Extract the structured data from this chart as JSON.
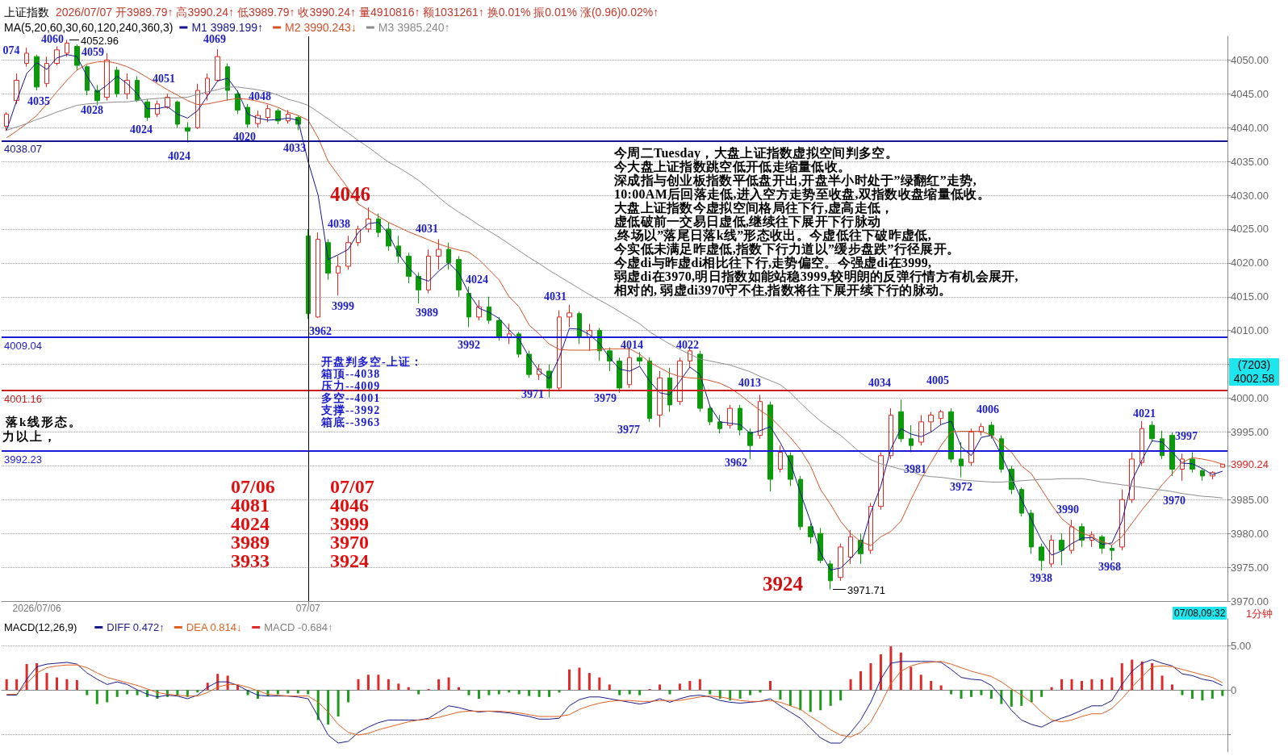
{
  "chart_data": [
    {
      "type": "candlestick",
      "title": "上证指数",
      "subtitle": "2026/07/07 开3989.79↑ 高3990.24↑ 低3989.79↑ 收3990.24↑ 量4910816↑ 额1031261↑ 换0.01% 振0.01% 涨(0.96)0.02%↑",
      "legend_title": "MA(5,20,60,30,60,120,240,360,3)",
      "legend": "top left",
      "grid": "y",
      "ylim": [
        3970,
        4053.5
      ],
      "yticks": [
        {
          "value": 3970,
          "label": "3970.00"
        },
        {
          "value": 3975,
          "label": "3975.00"
        },
        {
          "value": 3980,
          "label": "3980.00"
        },
        {
          "value": 3985,
          "label": "3985.00"
        },
        {
          "value": 3990,
          "label": null
        },
        {
          "value": 3995,
          "label": "3995.00"
        },
        {
          "value": 4000,
          "label": "4000.00"
        },
        {
          "value": 4005,
          "label": null
        },
        {
          "value": 4010,
          "label": "4010.00"
        },
        {
          "value": 4015,
          "label": "4015.00"
        },
        {
          "value": 4020,
          "label": "4020.00"
        },
        {
          "value": 4025,
          "label": "4025.00"
        },
        {
          "value": 4030,
          "label": "4030.00"
        },
        {
          "value": 4035,
          "label": "4035.00"
        },
        {
          "value": 4040,
          "label": "4040.00"
        },
        {
          "value": 4045,
          "label": "4045.00"
        },
        {
          "value": 4050,
          "label": "4050.00"
        }
      ],
      "categories": [
        null,
        null,
        null,
        "2026/07/06",
        null,
        null,
        null,
        null,
        null,
        null,
        null,
        null,
        null,
        null,
        null,
        null,
        null,
        null,
        null,
        null,
        null,
        null,
        null,
        null,
        null,
        null,
        null,
        null,
        null,
        null,
        "07/07",
        null,
        null,
        null,
        null,
        null,
        null,
        null,
        null,
        null,
        null,
        null,
        null,
        null,
        null,
        null,
        null,
        null,
        null,
        null,
        null,
        null,
        null,
        null,
        null,
        null,
        null,
        null,
        null,
        null,
        null,
        null,
        null,
        null,
        null,
        null,
        null,
        null,
        null,
        null,
        null,
        null,
        null,
        null,
        null,
        null,
        null,
        null,
        null,
        null,
        null,
        null,
        null,
        null,
        null,
        null,
        null,
        null,
        null,
        null,
        null,
        null,
        null,
        null,
        null,
        null,
        null,
        null,
        null,
        null,
        null,
        null,
        null,
        null,
        null,
        null,
        null,
        null,
        null,
        null,
        null,
        null,
        null,
        null,
        null,
        null,
        null,
        null,
        null,
        null,
        null,
        null
      ],
      "ohlc": [
        [
          4040.2,
          4042.3,
          4039.5,
          4042
        ],
        [
          4044,
          4048,
          4043.5,
          4047
        ],
        [
          4049.5,
          4051.8,
          4049,
          4051
        ],
        [
          4050.5,
          4050.8,
          4045.5,
          4046
        ],
        [
          4046.5,
          4050.5,
          4046,
          4049.5
        ],
        [
          4049.5,
          4052,
          4049.2,
          4051.5
        ],
        [
          4051,
          4052.96,
          4050.5,
          4052.5
        ],
        [
          4052,
          4052.3,
          4048.5,
          4049.2
        ],
        [
          4049,
          4049.2,
          4044.8,
          4045.5
        ],
        [
          4045.5,
          4046.3,
          4043.3,
          4044
        ],
        [
          4044.5,
          4051,
          4044,
          4050
        ],
        [
          4048.5,
          4049,
          4044.5,
          4045
        ],
        [
          4045,
          4048,
          4044.2,
          4047
        ],
        [
          4047,
          4047.6,
          4043.8,
          4044
        ],
        [
          4043.8,
          4044.2,
          4041,
          4041.5
        ],
        [
          4042,
          4044,
          4041.6,
          4043.5
        ],
        [
          4043,
          4045,
          4042.8,
          4044.5
        ],
        [
          4043.8,
          4044,
          4040,
          4040.5
        ],
        [
          4040,
          4040.8,
          4037.8,
          4039.5
        ],
        [
          4040,
          4046.5,
          4039.8,
          4045.5
        ],
        [
          4045,
          4048,
          4044,
          4047.3
        ],
        [
          4047,
          4051.6,
          4046.8,
          4050.5
        ],
        [
          4049,
          4049.5,
          4044,
          4045.5
        ],
        [
          4045,
          4045.5,
          4042,
          4042.6
        ],
        [
          4043,
          4043.5,
          4040,
          4040.5
        ],
        [
          4040.6,
          4042.5,
          4040,
          4041.8
        ],
        [
          4041.5,
          4043.4,
          4040.8,
          4042.8
        ],
        [
          4042.5,
          4042.8,
          4040.5,
          4041
        ],
        [
          4041,
          4042.6,
          4040.6,
          4042
        ],
        [
          4041.5,
          4041.8,
          4039.6,
          4040.5
        ],
        [
          4024,
          4025,
          4011.7,
          4012.5
        ],
        [
          4012,
          4024.5,
          4011.9,
          4023.5
        ],
        [
          4023,
          4023.5,
          4017.5,
          4018.5
        ],
        [
          4018.5,
          4021,
          4015.2,
          4019.5
        ],
        [
          4019.5,
          4024,
          4019,
          4023
        ],
        [
          4023,
          4025.5,
          4022.5,
          4025
        ],
        [
          4025,
          4028.2,
          4024.5,
          4026.5
        ],
        [
          4026.5,
          4027.3,
          4023.8,
          4024.5
        ],
        [
          4025,
          4026,
          4021.8,
          4022.5
        ],
        [
          4022.5,
          4024,
          4020,
          4021
        ],
        [
          4021,
          4021.5,
          4017,
          4018
        ],
        [
          4018,
          4018.6,
          4014,
          4016
        ],
        [
          4016,
          4022,
          4015.5,
          4021
        ],
        [
          4021,
          4023.5,
          4019,
          4022
        ],
        [
          4022,
          4023,
          4019,
          4020
        ],
        [
          4020.5,
          4021,
          4015,
          4016
        ],
        [
          4015.5,
          4016.5,
          4010.5,
          4012
        ],
        [
          4012,
          4014.5,
          4011.5,
          4013.5
        ],
        [
          4013.5,
          4015,
          4011,
          4011.5
        ],
        [
          4011.5,
          4012,
          4008.5,
          4009
        ],
        [
          4009,
          4011,
          4008,
          4009.5
        ],
        [
          4009.5,
          4009.8,
          4006,
          4006.5
        ],
        [
          4006.5,
          4007,
          4003,
          4003.5
        ],
        [
          4003.5,
          4005,
          4002.7,
          4004.3
        ],
        [
          4004,
          4005,
          4000.1,
          4001.5
        ],
        [
          4001.5,
          4013,
          4001,
          4012
        ],
        [
          4012,
          4013.8,
          4010.5,
          4012.6
        ],
        [
          4012.5,
          4012.8,
          4008,
          4009
        ],
        [
          4009,
          4011,
          4007,
          4010
        ],
        [
          4010,
          4010.4,
          4005.5,
          4007
        ],
        [
          4007,
          4007.5,
          4004,
          4005.5
        ],
        [
          4005.5,
          4006,
          4000.8,
          4001.5
        ],
        [
          4002,
          4007.5,
          4001.5,
          4006
        ],
        [
          4006,
          4006.8,
          4004.8,
          4005.5
        ],
        [
          4005.5,
          4006,
          3996.5,
          3997
        ],
        [
          3997.5,
          4004,
          3995.7,
          4003
        ],
        [
          4003,
          4004.5,
          3998,
          3999
        ],
        [
          3999.5,
          4006,
          3999,
          4005.5
        ],
        [
          4005.5,
          4007.6,
          4004.5,
          4007
        ],
        [
          4006.5,
          4007,
          3998,
          3998.5
        ],
        [
          3998.5,
          3999,
          3996,
          3996.5
        ],
        [
          3996.5,
          3997.5,
          3994.8,
          3995.5
        ],
        [
          3996,
          3999,
          3995.5,
          3998.5
        ],
        [
          3998.5,
          3999,
          3994.5,
          3995.3
        ],
        [
          3995,
          3995.5,
          3991,
          3993
        ],
        [
          3994.5,
          4000.5,
          3994,
          3999.5
        ],
        [
          3999,
          3999.5,
          3986.2,
          3988
        ],
        [
          3989.5,
          3993,
          3989,
          3992
        ],
        [
          3991.5,
          3992,
          3987,
          3988
        ],
        [
          3988,
          3988.5,
          3980.5,
          3981
        ],
        [
          3981,
          3981.5,
          3978.5,
          3979.5
        ],
        [
          3980,
          3980.8,
          3975.6,
          3976
        ],
        [
          3975.5,
          3976,
          3971.71,
          3973
        ],
        [
          3973.5,
          3978.5,
          3973,
          3978
        ],
        [
          3976.5,
          3980.5,
          3975.5,
          3979.5
        ],
        [
          3979,
          3980,
          3975.5,
          3977
        ],
        [
          3977.5,
          3984.5,
          3977,
          3984
        ],
        [
          3984,
          3992,
          3983.5,
          3991.5
        ],
        [
          3991.5,
          3998.5,
          3991,
          3997.5
        ],
        [
          3998,
          3999.8,
          3993.5,
          3994
        ],
        [
          3994,
          3996,
          3992,
          3993
        ],
        [
          3993.5,
          3997.5,
          3993,
          3996.5
        ],
        [
          3996.5,
          3998,
          3995,
          3997.5
        ],
        [
          3997,
          3998.3,
          3996,
          3998
        ],
        [
          3998,
          3998.5,
          3990.5,
          3991
        ],
        [
          3991,
          3993.5,
          3988.3,
          3990
        ],
        [
          3990.5,
          3995.5,
          3990,
          3995
        ],
        [
          3995,
          3996.3,
          3994.5,
          3995.8
        ],
        [
          3996,
          3996.5,
          3994,
          3994.5
        ],
        [
          3994,
          3994.5,
          3989,
          3989.5
        ],
        [
          3989.5,
          3990,
          3985.8,
          3986.5
        ],
        [
          3986.5,
          3986.8,
          3982.5,
          3983
        ],
        [
          3983,
          3983.5,
          3977,
          3978
        ],
        [
          3978,
          3978.5,
          3974.5,
          3976
        ],
        [
          3975.5,
          3979.8,
          3975,
          3979
        ],
        [
          3979,
          3980,
          3975.3,
          3977.5
        ],
        [
          3977.5,
          3982,
          3977,
          3981
        ],
        [
          3981,
          3981.5,
          3978,
          3979
        ],
        [
          3979,
          3980.3,
          3978,
          3979.8
        ],
        [
          3979.5,
          3979.8,
          3977,
          3977.8
        ],
        [
          3977.8,
          3978.3,
          3976,
          3977.5
        ],
        [
          3978,
          3986.5,
          3977.5,
          3985
        ],
        [
          3985,
          3992,
          3984.5,
          3991
        ],
        [
          3990.5,
          3996.6,
          3990,
          3995.5
        ],
        [
          3996,
          3996.6,
          3993.5,
          3994
        ],
        [
          3994,
          3995.2,
          3991,
          3991.5
        ],
        [
          3994.5,
          3995,
          3988.5,
          3989.5
        ],
        [
          3989.5,
          3991.8,
          3987.8,
          3991
        ],
        [
          3991,
          3992,
          3989,
          3989.5
        ],
        [
          3989.3,
          3989.5,
          3987.8,
          3988.5
        ],
        [
          3988.5,
          3989.2,
          3988,
          3989
        ],
        [
          3989.79,
          3990.24,
          3989.79,
          3990.24
        ]
      ],
      "series": [
        {
          "name": "M1 3989.199↑",
          "type": "line",
          "color": "#14148c",
          "values": [
            4039.6,
            4044,
            4048,
            4049.6,
            4048.6,
            4050.3,
            4050.8,
            4050.5,
            4047.6,
            4045.2,
            4046.3,
            4047.6,
            4046.5,
            4045,
            4042.8,
            4042.8,
            4043.1,
            4042,
            4041.4,
            4042.5,
            4044.7,
            4046.9,
            4047.3,
            4045.3,
            4042,
            4041.4,
            4041.1,
            4041.2,
            4041.4,
            4041.1,
            4035,
            4030,
            4020.5,
            4021.2,
            4022,
            4024.5,
            4025.8,
            4026,
            4024.3,
            4021.3,
            4019.3,
            4017.8,
            4017.3,
            4018.8,
            4020,
            4018.5,
            4015.5,
            4013.3,
            4012.7,
            4011.8,
            4010.1,
            4008.7,
            4006.1,
            4004,
            4002.9,
            4006,
            4010.3,
            4010.2,
            4009.4,
            4008.1,
            4006,
            4004.3,
            4004,
            4004.7,
            4002.5,
            4000.8,
            4000.5,
            4002.5,
            4004.6,
            4003.5,
            3998.8,
            3996.5,
            3996.3,
            3996.1,
            3994.8,
            3995.2,
            3995.8,
            3993.4,
            3990.5,
            3986,
            3981.8,
            3977.1,
            3974.6,
            3974.9,
            3976.3,
            3978,
            3983.1,
            3987,
            3992.5,
            3995.5,
            3994.7,
            3994.3,
            3995,
            3996.1,
            3996.6,
            3992.8,
            3991.5,
            3994.2,
            3994.5,
            3991.6,
            3988.3,
            3985,
            3982,
            3979,
            3976.8,
            3977.4,
            3978.5,
            3979.3,
            3979.4,
            3978.4,
            3978.6,
            3981.8,
            3987.8,
            3990.9,
            3993.7,
            3993.5,
            3992,
            3990.4,
            3990.3,
            3989.6,
            3988.7,
            3989.199
          ]
        },
        {
          "name": "M2 3990.243↓",
          "type": "line",
          "color": "#d2522a",
          "values": [
            4038.5,
            4039.5,
            4040.6,
            4041.8,
            4043.5,
            4045.3,
            4047,
            4048.5,
            4049.4,
            4049.7,
            4049.8,
            4049.5,
            4049,
            4048.3,
            4047.4,
            4046.5,
            4045.6,
            4044.8,
            4044,
            4043.4,
            4043.5,
            4043.8,
            4044.1,
            4044.3,
            4044.2,
            4043.9,
            4043.5,
            4043,
            4042.3,
            4041.8,
            4041.1,
            4038.5,
            4035,
            4033,
            4031,
            4028.7,
            4027.8,
            4026.9,
            4026,
            4025.3,
            4024.6,
            4024,
            4023.4,
            4022.8,
            4022.3,
            4021.9,
            4021.6,
            4020.5,
            4019,
            4017.5,
            4015,
            4013.5,
            4010.8,
            4009.5,
            4008,
            4007.2,
            4007.1,
            4007.1,
            4007.1,
            4007.2,
            4007.3,
            4007.3,
            4007.3,
            4006.5,
            4005.3,
            4004.5,
            4003.7,
            4003.2,
            4003,
            4002.9,
            4002.6,
            4002.2,
            4001.5,
            4000.5,
            3999.3,
            3998.2,
            3997.2,
            3995.7,
            3994.2,
            3992.4,
            3990,
            3986.5,
            3984.3,
            3981.8,
            3980,
            3978.8,
            3978.2,
            3979.5,
            3980.3,
            3981.8,
            3985,
            3988,
            3990.5,
            3993,
            3995,
            3995.1,
            3995.1,
            3995.1,
            3994.5,
            3993.3,
            3992,
            3990,
            3988.8,
            3986.5,
            3984.2,
            3982.2,
            3981,
            3980.1,
            3979.5,
            3978.8,
            3978.3,
            3979.5,
            3981.5,
            3983.5,
            3985.3,
            3987.2,
            3988.8,
            3990.5,
            3991.2,
            3991,
            3990.7,
            3990.243
          ]
        },
        {
          "name": "M3 3985.240↑",
          "type": "line",
          "color": "#8c8c8c",
          "values": [
            4039.6,
            4040.1,
            4040.6,
            4041.2,
            4041.7,
            4042.3,
            4042.8,
            4043.3,
            4043.5,
            4043.6,
            4043.7,
            4043.8,
            4043.8,
            4044,
            4044.2,
            4044.3,
            4044.4,
            4044.4,
            4044.5,
            4044.9,
            4045.3,
            4045.6,
            4046,
            4046,
            4045.8,
            4045.6,
            4045.3,
            4044.8,
            4044.2,
            4043.8,
            4043.3,
            4042.3,
            4041.3,
            4040.2,
            4039.2,
            4038.1,
            4037.1,
            4036,
            4034.9,
            4034.1,
            4033.2,
            4032.2,
            4031,
            4029.7,
            4028.5,
            4027.5,
            4026.6,
            4025.6,
            4024.7,
            4023.8,
            4022.8,
            4021.8,
            4020.8,
            4019.9,
            4018.9,
            4018,
            4017.1,
            4016.2,
            4015.3,
            4014.5,
            4013.7,
            4012.8,
            4011.9,
            4011,
            4009.8,
            4008.9,
            4008,
            4007.2,
            4006.5,
            4005.8,
            4005.5,
            4005.2,
            4004.9,
            4004.4,
            4003.9,
            4003.2,
            4002.6,
            4002,
            4000.8,
            3999.3,
            3997.9,
            3996.6,
            3995.5,
            3994.5,
            3993.2,
            3991.9,
            3990.9,
            3990.3,
            3989.9,
            3989.5,
            3989.2,
            3988.6,
            3988.4,
            3988.3,
            3988.1,
            3987.9,
            3987.8,
            3987.7,
            3987.6,
            3987.6,
            3987.7,
            3987.8,
            3987.9,
            3988,
            3988,
            3988.1,
            3988.1,
            3988.1,
            3987.9,
            3987.6,
            3987.4,
            3987.2,
            3987,
            3986.8,
            3986.6,
            3986.4,
            3986.2,
            3985.9,
            3985.7,
            3985.5,
            3985.4,
            3985.24
          ]
        }
      ],
      "ref_lines": [
        {
          "axis": "y",
          "value": 4038.07,
          "label": "4038.07",
          "color": "#14148c"
        },
        {
          "axis": "y",
          "value": 4009.04,
          "label": "4009.04",
          "color": "#1a1ad6"
        },
        {
          "axis": "y",
          "value": 4001.16,
          "label": "4001.16",
          "color": "#cc1f1f"
        },
        {
          "axis": "y",
          "value": 3992.23,
          "label": "3992.23",
          "color": "#1a1ad6"
        },
        {
          "axis": "x",
          "value": "07/07",
          "color": "#000000"
        }
      ],
      "annotations": [
        "074",
        "4060",
        "4052.96",
        "4059",
        "4069",
        "4035",
        "4028",
        "4051",
        "4048",
        "4024",
        "4020",
        "4033",
        "4024",
        "4046",
        "4038",
        "4031",
        "3999",
        "3962",
        "3989",
        "4024",
        "3992",
        "4031",
        "3971",
        "4014",
        "3979",
        "4022",
        "3977",
        "4013",
        "3962",
        "3924",
        "3971.71",
        "4034",
        "4005",
        "3981",
        "4006",
        "3972",
        "3990",
        "3938",
        "3968",
        "4021",
        "3997",
        "3970",
        "今周二Tuesday，大盘上证指数虚拟空间判多空。",
        "今大盘上证指数跳空低开低走缩量低收。",
        "深成指与创业板指数平低盘开出,开盘半小时处于”绿翻红”走势,",
        "10:00AM后回落走低,进入空方走势至收盘,双指数收盘缩量低收。",
        "大盘上证指数今虚拟空间格局往下行,虚高走低，",
        "虚低破前一交易日虚低,继续往下展开下行脉动",
        ",终场以”落尾日落k线”形态收出。今虚低往下破昨虚低,",
        "今实低未满足昨虚低,指数下行力道以”缓步盘跌”行径展开。",
        "今虚di与昨虚di相比往下行,走势偏空。今强虚di在3999,",
        "弱虚di在3970,明日指数如能站稳3999,较明朗的反弹行情方有机会展开,",
        "相对的, 弱虚di3970守不住,指数将往下展开续下行的脉动。",
        "开盘判多空-上证：",
        "箱顶--4038",
        "压力--4009",
        "多空--4001",
        "支撑--3992",
        "箱底--3963",
        "07/06",
        "4081",
        "4024",
        "3989",
        "3933",
        "07/07",
        "4046",
        "3999",
        "3970",
        "3924",
        "落k线形态。",
        "力以上，",
        "3990.24",
        "(7203)",
        "4002.58",
        "07/08,09:32",
        "1分钟"
      ]
    },
    {
      "type": "line",
      "title": "MACD(12,26,9)",
      "legend": "top left",
      "grid": "y",
      "tick_labels": "y",
      "categories": [
        null,
        null,
        null,
        null,
        null,
        null,
        null,
        null,
        null,
        null,
        null,
        null,
        null,
        null,
        null,
        null,
        null,
        null,
        null,
        null,
        null,
        null,
        null,
        null,
        null,
        null,
        null,
        null,
        null,
        null,
        null,
        null,
        null,
        null,
        null,
        null,
        null,
        null,
        null,
        null,
        null,
        null,
        null,
        null,
        null,
        null,
        null,
        null,
        null,
        null,
        null,
        null,
        null,
        null,
        null,
        null,
        null,
        null,
        null,
        null,
        null,
        null,
        null,
        null,
        null,
        null,
        null,
        null,
        null,
        null,
        null,
        null,
        null,
        null,
        null,
        null,
        null,
        null,
        null,
        null,
        null,
        null,
        null,
        null,
        null,
        null,
        null,
        null,
        null,
        null,
        null,
        null,
        null,
        null,
        null,
        null,
        null,
        null,
        null,
        null,
        null,
        null,
        null,
        null,
        null,
        null,
        null,
        null,
        null,
        null,
        null,
        null,
        null,
        null,
        null,
        null,
        null,
        null,
        null,
        null,
        null,
        null
      ],
      "ylim": [
        -7,
        8
      ],
      "yticks": [
        {
          "value": 5,
          "label": "5.00"
        },
        {
          "value": 0,
          "label": "0"
        },
        {
          "value": -5,
          "label": null
        }
      ],
      "series": [
        {
          "name": "DIFF 0.472↑",
          "color": "#1a1a8c",
          "values": [
            -0.6,
            -0.6,
            1.2,
            2.6,
            2.9,
            3.0,
            3.1,
            2.9,
            1.9,
            1.2,
            0.6,
            0.9,
            0.6,
            0,
            -0.5,
            -0.8,
            -0.6,
            -0.7,
            -1.0,
            -0.6,
            0.3,
            0.9,
            0.9,
            0.5,
            -0.1,
            -0.6,
            -0.7,
            -0.7,
            -0.7,
            -0.8,
            -1.0,
            -3.0,
            -5.1,
            -6.0,
            -5.8,
            -4.8,
            -4.2,
            -3.7,
            -3.4,
            -3.4,
            -3.4,
            -3.4,
            -3.2,
            -2.5,
            -1.8,
            -2.0,
            -2.3,
            -2.5,
            -2.4,
            -2.5,
            -2.6,
            -2.8,
            -3.0,
            -3.3,
            -3.3,
            -3.2,
            -1.8,
            -1.1,
            -0.8,
            -0.8,
            -1.0,
            -1.2,
            -1.4,
            -1.6,
            -1.4,
            -1.0,
            -1.4,
            -1.0,
            -0.7,
            -0.6,
            -0.8,
            -1.2,
            -1.4,
            -1.5,
            -1.4,
            -1.3,
            -1.0,
            -1.8,
            -2.5,
            -3.2,
            -4.3,
            -5.4,
            -6.0,
            -6.0,
            -4.8,
            -3.4,
            -1.4,
            1.2,
            3.0,
            3.2,
            3.2,
            3.2,
            3.2,
            3.1,
            2.3,
            1.4,
            1.2,
            1.1,
            0.5,
            -0.8,
            -2.3,
            -3.4,
            -3.9,
            -4.2,
            -3.6,
            -3.2,
            -2.8,
            -2.3,
            -1.8,
            -1.8,
            -1.2,
            0.6,
            2.1,
            3.0,
            3.4,
            3.0,
            2.7,
            1.8,
            1.6,
            1.2,
            1.0,
            0.472
          ]
        },
        {
          "name": "DEA 0.814↓",
          "color": "#e06020",
          "values": [
            -0.5,
            -0.5,
            0.7,
            1.9,
            2.5,
            2.7,
            2.8,
            2.8,
            2.5,
            1.9,
            1.4,
            1.1,
            0.8,
            0.5,
            0.1,
            -0.3,
            -0.5,
            -0.6,
            -0.7,
            -0.7,
            -0.3,
            0.3,
            0.6,
            0.6,
            0.3,
            -0.1,
            -0.5,
            -0.6,
            -0.7,
            -0.7,
            -0.7,
            -1.4,
            -2.5,
            -3.9,
            -4.8,
            -5.1,
            -4.9,
            -4.5,
            -4.2,
            -3.9,
            -3.6,
            -3.4,
            -3.3,
            -3.1,
            -2.8,
            -2.5,
            -2.4,
            -2.4,
            -2.4,
            -2.4,
            -2.5,
            -2.6,
            -2.8,
            -3.0,
            -3.0,
            -3.0,
            -2.8,
            -2.2,
            -1.8,
            -1.5,
            -1.3,
            -1.2,
            -1.2,
            -1.3,
            -1.3,
            -1.2,
            -1.2,
            -1.2,
            -1.0,
            -0.8,
            -0.7,
            -0.8,
            -1.0,
            -1.2,
            -1.3,
            -1.3,
            -1.2,
            -1.4,
            -1.8,
            -2.2,
            -3.0,
            -3.7,
            -4.5,
            -5.1,
            -5.3,
            -4.8,
            -3.6,
            -1.6,
            0.7,
            2.1,
            2.7,
            3.0,
            3.1,
            3.2,
            2.9,
            2.5,
            2.1,
            1.8,
            1.5,
            0.9,
            0.1,
            -0.6,
            -1.4,
            -2.5,
            -3.4,
            -3.6,
            -3.4,
            -3.0,
            -2.7,
            -2.7,
            -2.1,
            -1.0,
            0.3,
            1.5,
            2.6,
            2.7,
            2.6,
            2.3,
            2.0,
            1.7,
            1.4,
            0.814
          ]
        },
        {
          "name": "MACD -0.684↑",
          "type": "bar",
          "values": [
            1.2,
            1.2,
            2.9,
            3.0,
            1.9,
            1.4,
            1.2,
            1.1,
            -0.6,
            -1.6,
            -1.4,
            -0.8,
            -0.5,
            -0.6,
            -0.8,
            -1.0,
            -0.8,
            -0.6,
            -0.8,
            -0.3,
            0.8,
            1.8,
            1.6,
            0.5,
            -0.6,
            -1.0,
            -0.7,
            -0.5,
            -0.4,
            -0.4,
            -0.5,
            -3.4,
            -3.9,
            -3.0,
            -1.4,
            1.2,
            1.7,
            1.7,
            1.2,
            0.7,
            0.3,
            -0.5,
            0.1,
            1.2,
            1.4,
            0.3,
            -0.6,
            -1.0,
            -0.6,
            -0.5,
            -0.3,
            -0.5,
            -0.7,
            -0.8,
            -0.8,
            -0.3,
            2.3,
            2.5,
            1.9,
            1.4,
            0.6,
            -0.6,
            -0.5,
            -0.6,
            0.1,
            0.6,
            -0.5,
            0.7,
            1.0,
            1.2,
            -0.5,
            -1.0,
            -1.2,
            -1.0,
            -0.6,
            -0.3,
            1.0,
            -1.1,
            -1.8,
            -2.3,
            -2.5,
            -2.3,
            -1.8,
            -1.2,
            1.2,
            2.1,
            3.0,
            4.0,
            4.9,
            4.2,
            2.6,
            1.7,
            1.0,
            0.5,
            -0.5,
            -1.0,
            -0.8,
            -0.6,
            -1.0,
            -1.6,
            -1.9,
            -1.8,
            -1.4,
            -0.8,
            0.3,
            1.2,
            1.2,
            1.0,
            1.2,
            1.2,
            1.4,
            3.0,
            3.4,
            3.2,
            3.0,
            1.6,
            0.6,
            -0.6,
            -1.0,
            -1.2,
            -1.0,
            -0.684
          ],
          "colors": [
            "#e02a2a",
            "#e02a2a",
            "#e02a2a",
            "#e02a2a",
            "#e02a2a",
            "#e02a2a",
            "#e02a2a",
            "#e02a2a",
            "#1f9a1f",
            "#1f9a1f",
            "#1f9a1f",
            "#1f9a1f",
            "#1f9a1f",
            "#1f9a1f",
            "#1f9a1f",
            "#1f9a1f",
            "#1f9a1f",
            "#1f9a1f",
            "#1f9a1f",
            "#1f9a1f",
            "#e02a2a",
            "#e02a2a",
            "#e02a2a",
            "#e02a2a",
            "#1f9a1f",
            "#1f9a1f",
            "#1f9a1f",
            "#1f9a1f",
            "#1f9a1f",
            "#1f9a1f",
            "#1f9a1f",
            "#1f9a1f",
            "#1f9a1f",
            "#1f9a1f",
            "#1f9a1f",
            "#e02a2a",
            "#e02a2a",
            "#e02a2a",
            "#e02a2a",
            "#e02a2a",
            "#e02a2a",
            "#1f9a1f",
            "#e02a2a",
            "#e02a2a",
            "#e02a2a",
            "#e02a2a",
            "#1f9a1f",
            "#1f9a1f",
            "#1f9a1f",
            "#1f9a1f",
            "#1f9a1f",
            "#1f9a1f",
            "#1f9a1f",
            "#1f9a1f",
            "#1f9a1f",
            "#1f9a1f",
            "#e02a2a",
            "#e02a2a",
            "#e02a2a",
            "#e02a2a",
            "#e02a2a",
            "#1f9a1f",
            "#1f9a1f",
            "#1f9a1f",
            "#e02a2a",
            "#e02a2a",
            "#1f9a1f",
            "#e02a2a",
            "#e02a2a",
            "#e02a2a",
            "#1f9a1f",
            "#1f9a1f",
            "#1f9a1f",
            "#1f9a1f",
            "#1f9a1f",
            "#1f9a1f",
            "#e02a2a",
            "#1f9a1f",
            "#1f9a1f",
            "#1f9a1f",
            "#1f9a1f",
            "#1f9a1f",
            "#1f9a1f",
            "#1f9a1f",
            "#e02a2a",
            "#e02a2a",
            "#e02a2a",
            "#e02a2a",
            "#e02a2a",
            "#e02a2a",
            "#e02a2a",
            "#e02a2a",
            "#e02a2a",
            "#e02a2a",
            "#1f9a1f",
            "#1f9a1f",
            "#1f9a1f",
            "#1f9a1f",
            "#1f9a1f",
            "#1f9a1f",
            "#1f9a1f",
            "#1f9a1f",
            "#1f9a1f",
            "#1f9a1f",
            "#e02a2a",
            "#e02a2a",
            "#e02a2a",
            "#e02a2a",
            "#e02a2a",
            "#e02a2a",
            "#e02a2a",
            "#e02a2a",
            "#e02a2a",
            "#e02a2a",
            "#e02a2a",
            "#e02a2a",
            "#e02a2a",
            "#1f9a1f",
            "#1f9a1f",
            "#1f9a1f",
            "#1f9a1f",
            "#1f9a1f"
          ]
        }
      ]
    }
  ]
}
